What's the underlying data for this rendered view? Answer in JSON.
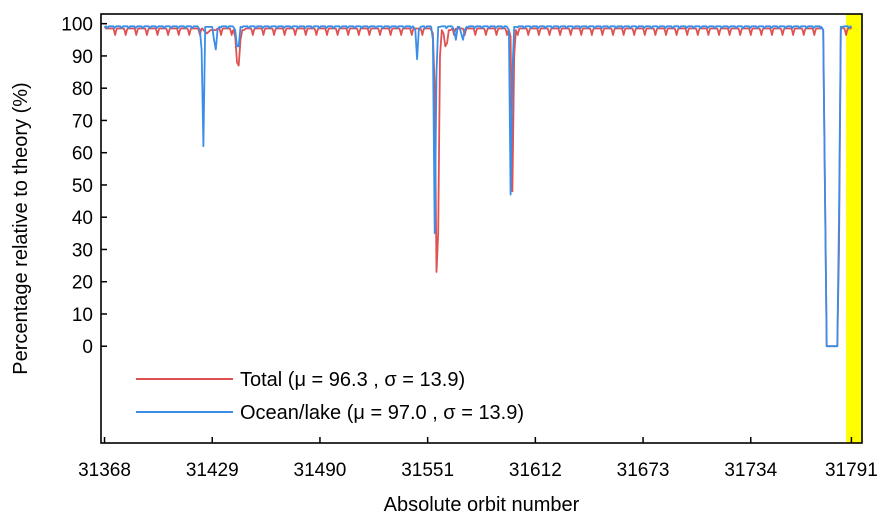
{
  "chart_data": {
    "type": "line",
    "xlabel": "Absolute orbit number",
    "ylabel": "Percentage relative to theory (%)",
    "x_ticks": [
      31368,
      31429,
      31490,
      31551,
      31612,
      31673,
      31734,
      31791
    ],
    "y_ticks": [
      0,
      10,
      20,
      30,
      40,
      50,
      60,
      70,
      80,
      90,
      100
    ],
    "xlim": [
      31366,
      31797
    ],
    "ylim": [
      -30,
      103
    ],
    "grid": false,
    "legend_position": "lower-left",
    "highlight_band": {
      "x_start": 31788,
      "x_end": 31797,
      "color": "#ffff00"
    },
    "series": [
      {
        "name": "Total (μ = 96.3 , σ = 13.9)",
        "color": "#e05252",
        "baseline": 98.5,
        "ripple_amplitude": 2.0,
        "ripple_period": 6,
        "x": [
          31368,
          31424,
          31426,
          31428,
          31431,
          31441,
          31442,
          31443,
          31444,
          31445,
          31446,
          31447,
          31553,
          31554,
          31555,
          31556,
          31557,
          31558,
          31559,
          31560,
          31561,
          31562,
          31563,
          31564,
          31597,
          31598,
          31599,
          31600,
          31601,
          31775,
          31777,
          31780,
          31783,
          31784,
          31785,
          31786,
          31791
        ],
        "values": [
          99,
          98,
          97,
          98,
          98,
          98,
          96,
          88,
          87,
          95,
          98,
          98,
          98,
          97,
          80,
          23,
          35,
          90,
          98,
          97,
          93,
          94,
          98,
          98,
          98,
          96,
          48,
          90,
          98,
          98,
          0,
          0,
          0,
          30,
          98,
          99,
          99
        ]
      },
      {
        "name": "Ocean/lake (μ = 97.0 , σ = 13.9)",
        "color": "#3b8ee8",
        "baseline": 99.2,
        "ripple_amplitude": 0.8,
        "ripple_period": 4,
        "x": [
          31368,
          31421,
          31422,
          31423,
          31424,
          31425,
          31429,
          31430,
          31431,
          31432,
          31433,
          31441,
          31442,
          31443,
          31444,
          31445,
          31543,
          31544,
          31545,
          31546,
          31547,
          31553,
          31554,
          31555,
          31556,
          31557,
          31558,
          31565,
          31566,
          31567,
          31568,
          31569,
          31570,
          31571,
          31572,
          31573,
          31596,
          31597,
          31598,
          31599,
          31600,
          31601,
          31774,
          31775,
          31776,
          31777,
          31780,
          31783,
          31784,
          31785,
          31786,
          31791
        ],
        "values": [
          99,
          99,
          98,
          92,
          62,
          99,
          99,
          95,
          92,
          98,
          99,
          99,
          98,
          93,
          93,
          99,
          99,
          98,
          89,
          98,
          99,
          99,
          95,
          35,
          85,
          99,
          99,
          99,
          98,
          95,
          99,
          99,
          97,
          95,
          98,
          99,
          99,
          98,
          47,
          85,
          99,
          99,
          99,
          98,
          50,
          0,
          0,
          0,
          40,
          99,
          99,
          99
        ]
      }
    ]
  }
}
